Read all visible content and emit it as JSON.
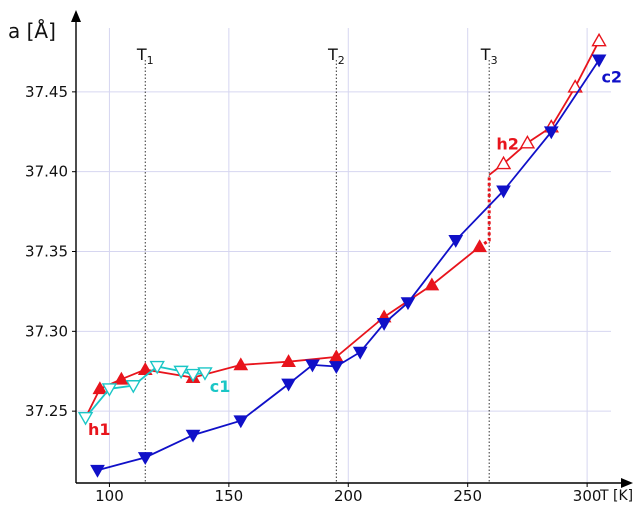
{
  "chart_data": {
    "type": "line",
    "ylabel": "a [Å]",
    "xlabel": "T [K]",
    "xlim": [
      86,
      310
    ],
    "ylim": [
      37.205,
      37.49
    ],
    "xticks": [
      100,
      150,
      200,
      250,
      300
    ],
    "yticks": [
      37.25,
      37.3,
      37.35,
      37.4,
      37.45
    ],
    "ytick_labels": [
      "37.25",
      "37.30",
      "37.35",
      "37.40",
      "37.45"
    ],
    "grid": true,
    "transitions": [
      {
        "main": "T",
        "sub": "1",
        "x": 115
      },
      {
        "main": "T",
        "sub": "2",
        "x": 195
      },
      {
        "main": "T",
        "sub": "3",
        "x": 259
      }
    ],
    "series": [
      {
        "name": "h1",
        "color": "#e8141c",
        "marker": "triangle-up-filled",
        "x": [
          90,
          96,
          105,
          115,
          135,
          155,
          175,
          195,
          215,
          235,
          255
        ],
        "y": [
          37.246,
          37.264,
          37.27,
          37.276,
          37.271,
          37.279,
          37.281,
          37.284,
          37.309,
          37.329,
          37.353
        ],
        "markers": [
          false,
          true,
          true,
          true,
          true,
          true,
          true,
          true,
          true,
          true,
          true
        ]
      },
      {
        "name": "h1-h2-jump",
        "color": "#e8141c",
        "style": "dotted",
        "x": [
          255,
          259,
          259
        ],
        "y": [
          37.353,
          37.357,
          37.398
        ]
      },
      {
        "name": "h2",
        "color": "#e8141c",
        "marker": "triangle-up-open",
        "x": [
          259,
          265,
          275,
          285,
          295,
          305
        ],
        "y": [
          37.398,
          37.405,
          37.418,
          37.428,
          37.453,
          37.482
        ],
        "markers": [
          false,
          true,
          true,
          true,
          true,
          true
        ]
      },
      {
        "name": "c1",
        "color": "#1ac6c6",
        "marker": "triangle-down-open",
        "x": [
          90,
          100,
          110,
          120,
          130,
          135,
          140
        ],
        "y": [
          37.246,
          37.264,
          37.266,
          37.278,
          37.275,
          37.273,
          37.274
        ]
      },
      {
        "name": "c2",
        "color": "#1010c8",
        "marker": "triangle-down-filled",
        "x": [
          95,
          115,
          135,
          155,
          175,
          185,
          195,
          205,
          215,
          225,
          245,
          265,
          285,
          305
        ],
        "y": [
          37.213,
          37.221,
          37.235,
          37.244,
          37.267,
          37.279,
          37.278,
          37.287,
          37.305,
          37.318,
          37.357,
          37.388,
          37.425,
          37.47
        ]
      }
    ],
    "series_labels": [
      {
        "text": "h1",
        "color": "#e8141c",
        "x": 91,
        "y": 37.235
      },
      {
        "text": "c1",
        "color": "#1ac6c6",
        "x": 142,
        "y": 37.262
      },
      {
        "text": "h2",
        "color": "#e8141c",
        "x": 262,
        "y": 37.414
      },
      {
        "text": "c2",
        "color": "#1010c8",
        "x": 306,
        "y": 37.456
      }
    ]
  }
}
